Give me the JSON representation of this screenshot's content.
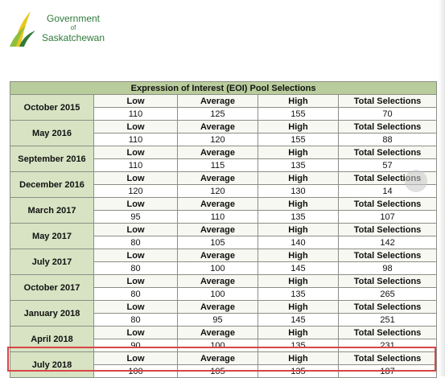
{
  "logo": {
    "line1": "Government",
    "line2": "of",
    "line3": "Saskatchewan"
  },
  "table": {
    "title": "Expression of Interest (EOI) Pool Selections",
    "headers": [
      "Low",
      "Average",
      "High",
      "Total Selections"
    ],
    "rows": [
      {
        "date": "October 2015",
        "low": "110",
        "average": "125",
        "high": "155",
        "total": "70"
      },
      {
        "date": "May 2016",
        "low": "110",
        "average": "120",
        "high": "155",
        "total": "88"
      },
      {
        "date": "September 2016",
        "low": "110",
        "average": "115",
        "high": "135",
        "total": "57"
      },
      {
        "date": "December 2016",
        "low": "120",
        "average": "120",
        "high": "130",
        "total": "14"
      },
      {
        "date": "March 2017",
        "low": "95",
        "average": "110",
        "high": "135",
        "total": "107"
      },
      {
        "date": "May 2017",
        "low": "80",
        "average": "105",
        "high": "140",
        "total": "142"
      },
      {
        "date": "July 2017",
        "low": "80",
        "average": "100",
        "high": "145",
        "total": "98"
      },
      {
        "date": "October 2017",
        "low": "80",
        "average": "100",
        "high": "135",
        "total": "265"
      },
      {
        "date": "January 2018",
        "low": "80",
        "average": "95",
        "high": "145",
        "total": "251"
      },
      {
        "date": "April 2018",
        "low": "90",
        "average": "100",
        "high": "135",
        "total": "231"
      },
      {
        "date": "July 2018",
        "low": "100",
        "average": "105",
        "high": "135",
        "total": "187"
      }
    ]
  },
  "colors": {
    "title_bg": "#b8cc9c",
    "date_bg": "#d7e3c3",
    "highlight": "#d84646",
    "logo_green": "#2f7a3a",
    "logo_yellow": "#e8c81e"
  }
}
